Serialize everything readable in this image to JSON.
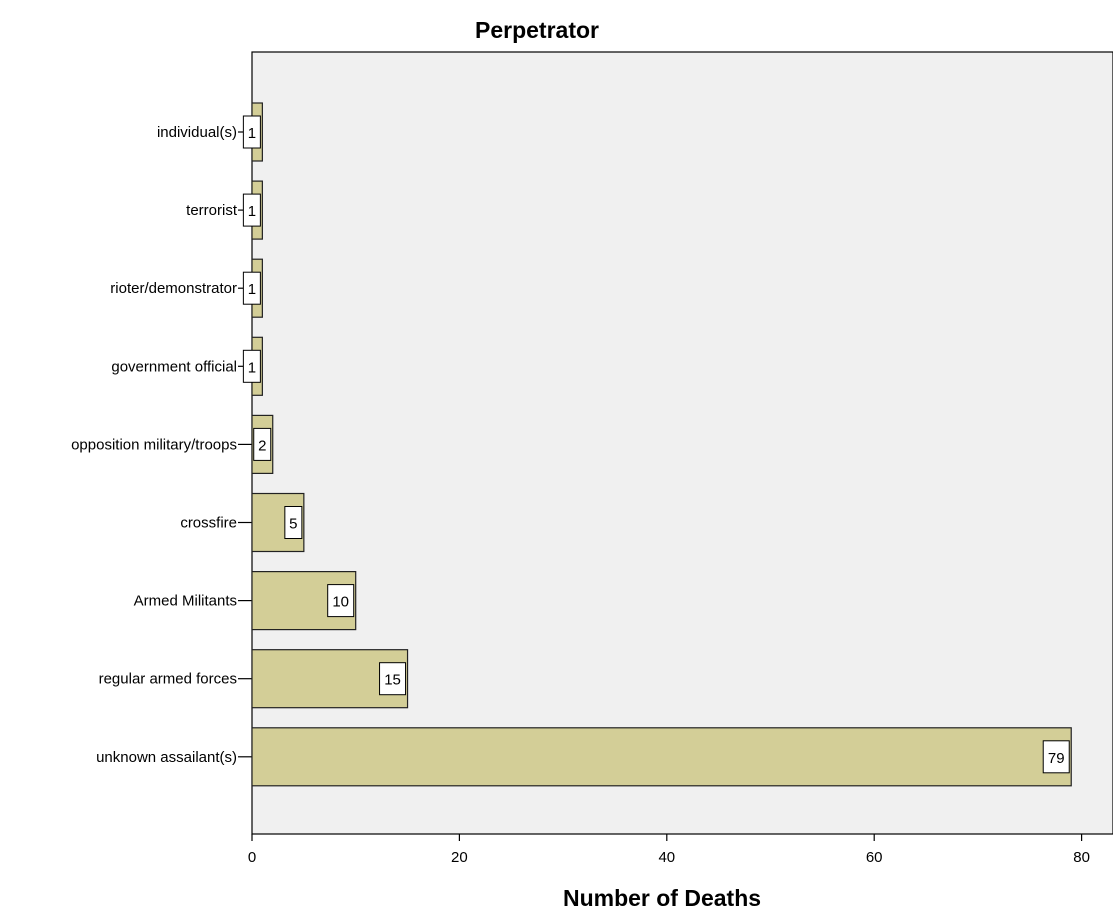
{
  "chart_data": {
    "type": "bar",
    "orientation": "horizontal",
    "title": "Perpetrator",
    "xlabel": "Number of Deaths",
    "ylabel": "",
    "categories": [
      "individual(s)",
      "terrorist",
      "rioter/demonstrator",
      "government official",
      "opposition military/troops",
      "crossfire",
      "Armed Militants",
      "regular armed forces",
      "unknown assailant(s)"
    ],
    "values": [
      1,
      1,
      1,
      1,
      2,
      5,
      10,
      15,
      79
    ],
    "data_labels": [
      "1",
      "1",
      "1",
      "1",
      "2",
      "5",
      "10",
      "15",
      "79"
    ],
    "xlim": [
      0,
      80
    ],
    "x_ticks": [
      0,
      20,
      40,
      60,
      80
    ],
    "grid": false,
    "legend": "none",
    "colors": {
      "bar_fill": "#d3ce97",
      "bar_stroke": "#222222",
      "plot_background": "#f0f0f0",
      "label_box_fill": "#ffffff"
    }
  }
}
